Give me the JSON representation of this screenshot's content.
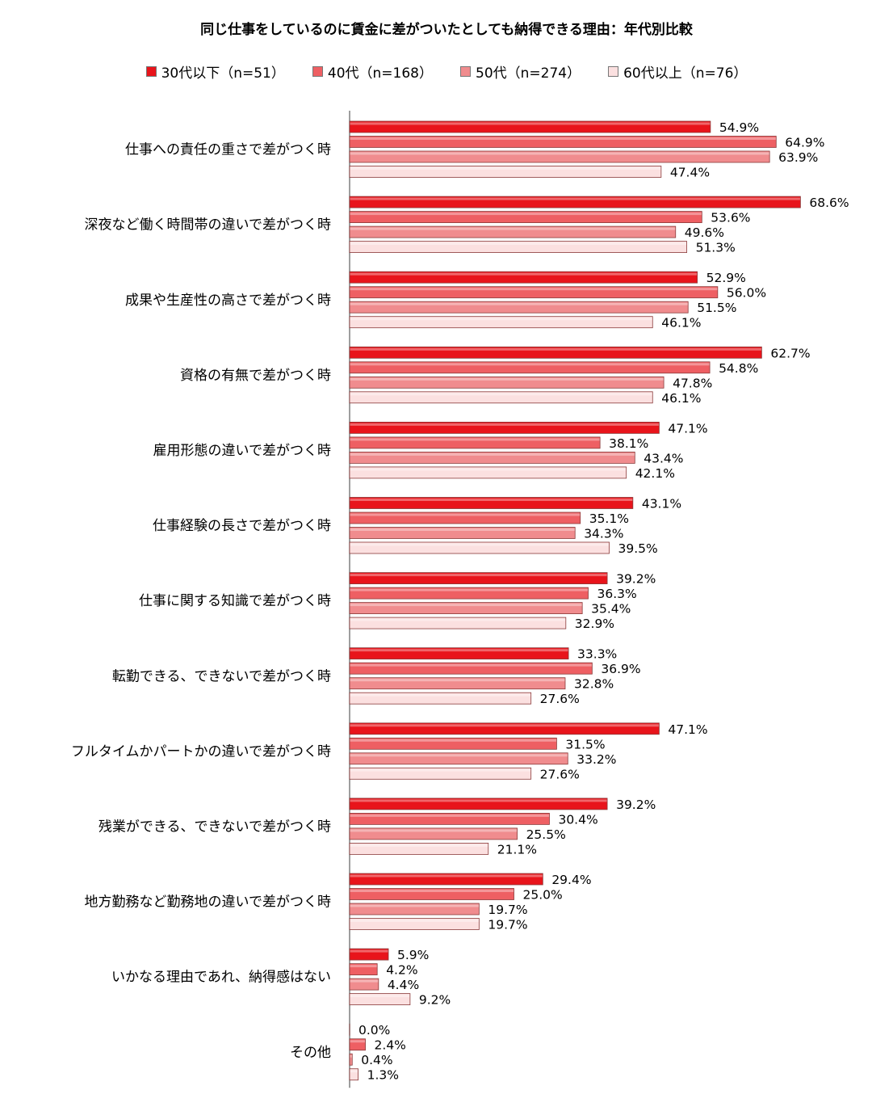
{
  "chart_data": {
    "type": "bar",
    "orientation": "horizontal",
    "title": "同じ仕事をしているのに賃金に差がついたとしても納得できる理由：年代別比較",
    "legend_position": "top",
    "xlim": [
      0,
      100
    ],
    "value_suffix": "%",
    "categories": [
      "仕事への責任の重さで差がつく時",
      "深夜など働く時間帯の違いで差がつく時",
      "成果や生産性の高さで差がつく時",
      "資格の有無で差がつく時",
      "雇用形態の違いで差がつく時",
      "仕事経験の長さで差がつく時",
      "仕事に関する知識で差がつく時",
      "転勤できる、できないで差がつく時",
      "フルタイムかパートかの違いで差がつく時",
      "残業ができる、できないで差がつく時",
      "地方勤務など勤務地の違いで差がつく時",
      "いかなる理由であれ、納得感はない",
      "その他"
    ],
    "series": [
      {
        "name": "30代以下（n=51）",
        "color": "#e8141b",
        "values": [
          54.9,
          68.6,
          52.9,
          62.7,
          47.1,
          43.1,
          39.2,
          33.3,
          47.1,
          39.2,
          29.4,
          5.9,
          0.0
        ]
      },
      {
        "name": "40代（n=168）",
        "color": "#ee5f63",
        "values": [
          64.9,
          53.6,
          56.0,
          54.8,
          38.1,
          35.1,
          36.3,
          36.9,
          31.5,
          30.4,
          25.0,
          4.2,
          2.4
        ]
      },
      {
        "name": "50代（n=274）",
        "color": "#f08c8e",
        "values": [
          63.9,
          49.6,
          51.5,
          47.8,
          43.4,
          34.3,
          35.4,
          32.8,
          33.2,
          25.5,
          19.7,
          4.4,
          0.4
        ]
      },
      {
        "name": "60代以上（n=76）",
        "color": "#fbe0e0",
        "values": [
          47.4,
          51.3,
          46.1,
          46.1,
          42.1,
          39.5,
          32.9,
          27.6,
          27.6,
          21.1,
          19.7,
          9.2,
          1.3
        ]
      }
    ]
  }
}
